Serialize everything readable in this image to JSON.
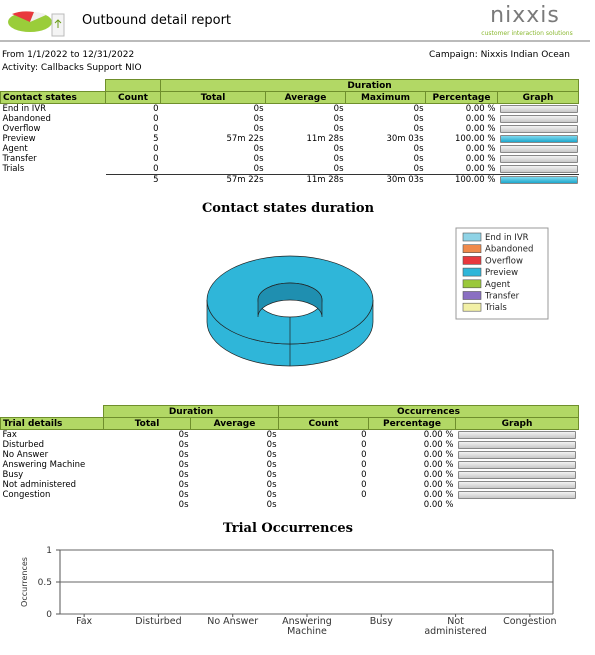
{
  "header": {
    "title": "Outbound detail report",
    "logo_text": "nixxis",
    "logo_tagline": "customer interaction solutions"
  },
  "info": {
    "period": "From  1/1/2022 to 12/31/2022",
    "campaign": "Campaign: Nixxis Indian Ocean",
    "activity": "Activity: Callbacks Support NIO"
  },
  "contact_table": {
    "group_header": "Duration",
    "row_header": "Contact states",
    "columns": [
      "Count",
      "Total",
      "Average",
      "Maximum",
      "Percentage",
      "Graph"
    ],
    "rows": [
      {
        "state": "End in IVR",
        "count": 0,
        "total": "0s",
        "average": "0s",
        "maximum": "0s",
        "percentage": 0,
        "percentage_label": "0.00 %"
      },
      {
        "state": "Abandoned",
        "count": 0,
        "total": "0s",
        "average": "0s",
        "maximum": "0s",
        "percentage": 0,
        "percentage_label": "0.00 %"
      },
      {
        "state": "Overflow",
        "count": 0,
        "total": "0s",
        "average": "0s",
        "maximum": "0s",
        "percentage": 0,
        "percentage_label": "0.00 %"
      },
      {
        "state": "Preview",
        "count": 5,
        "total": "57m 22s",
        "average": "11m 28s",
        "maximum": "30m 03s",
        "percentage": 100,
        "percentage_label": "100.00 %"
      },
      {
        "state": "Agent",
        "count": 0,
        "total": "0s",
        "average": "0s",
        "maximum": "0s",
        "percentage": 0,
        "percentage_label": "0.00 %"
      },
      {
        "state": "Transfer",
        "count": 0,
        "total": "0s",
        "average": "0s",
        "maximum": "0s",
        "percentage": 0,
        "percentage_label": "0.00 %"
      },
      {
        "state": "Trials",
        "count": 0,
        "total": "0s",
        "average": "0s",
        "maximum": "0s",
        "percentage": 0,
        "percentage_label": "0.00 %"
      }
    ],
    "totals": {
      "count": 5,
      "total": "57m 22s",
      "average": "11m 28s",
      "maximum": "30m 03s",
      "percentage": 100,
      "percentage_label": "100.00 %"
    }
  },
  "trial_table": {
    "groups": [
      "Duration",
      "Occurrences"
    ],
    "row_header": "Trial details",
    "columns": [
      "Total",
      "Average",
      "Count",
      "Percentage",
      "Graph"
    ],
    "rows": [
      {
        "name": "Fax",
        "total": "0s",
        "average": "0s",
        "count": 0,
        "percentage": 0,
        "percentage_label": "0.00 %"
      },
      {
        "name": "Disturbed",
        "total": "0s",
        "average": "0s",
        "count": 0,
        "percentage": 0,
        "percentage_label": "0.00 %"
      },
      {
        "name": "No Answer",
        "total": "0s",
        "average": "0s",
        "count": 0,
        "percentage": 0,
        "percentage_label": "0.00 %"
      },
      {
        "name": "Answering Machine",
        "total": "0s",
        "average": "0s",
        "count": 0,
        "percentage": 0,
        "percentage_label": "0.00 %"
      },
      {
        "name": "Busy",
        "total": "0s",
        "average": "0s",
        "count": 0,
        "percentage": 0,
        "percentage_label": "0.00 %"
      },
      {
        "name": "Not administered",
        "total": "0s",
        "average": "0s",
        "count": 0,
        "percentage": 0,
        "percentage_label": "0.00 %"
      },
      {
        "name": "Congestion",
        "total": "0s",
        "average": "0s",
        "count": 0,
        "percentage": 0,
        "percentage_label": "0.00 %"
      }
    ],
    "totals": {
      "total": "0s",
      "average": "0s",
      "percentage_label": "0.00 %"
    }
  },
  "chart_data": [
    {
      "type": "pie",
      "title": "Contact states duration",
      "categories": [
        "End in IVR",
        "Abandoned",
        "Overflow",
        "Preview",
        "Agent",
        "Transfer",
        "Trials"
      ],
      "values": [
        0,
        0,
        0,
        100,
        0,
        0,
        0
      ],
      "colors": [
        "#8fd3e6",
        "#f08a4b",
        "#e8383d",
        "#2fb6d9",
        "#9ac83a",
        "#8a6fc2",
        "#f2f0a6"
      ],
      "legend": "right"
    },
    {
      "type": "bar",
      "title": "Trial Occurrences",
      "y_label": "Occurrences",
      "categories": [
        "Fax",
        "Disturbed",
        "No Answer",
        "Answering Machine",
        "Busy",
        "Not administered",
        "Congestion"
      ],
      "values": [
        0,
        0,
        0,
        0,
        0,
        0,
        0
      ],
      "color": "#2fb6d9",
      "ylim": [
        0,
        1
      ],
      "yticks": [
        0,
        0.5,
        1
      ],
      "grid": true
    }
  ]
}
